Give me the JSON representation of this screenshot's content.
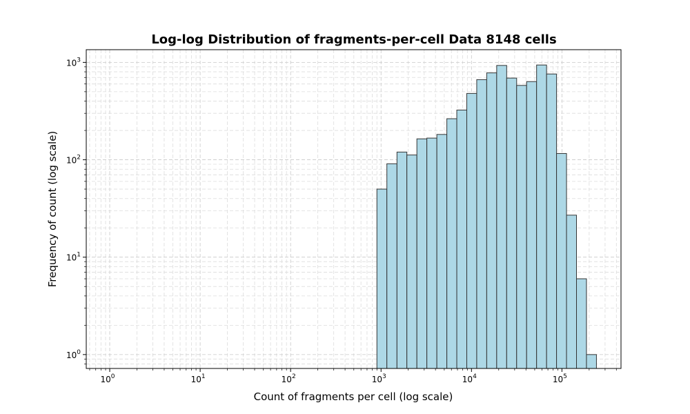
{
  "chart_data": {
    "type": "bar",
    "title": "Log-log Distribution of fragments-per-cell Data 8148 cells",
    "xlabel": "Count of fragments per cell (log scale)",
    "ylabel": "Frequency of count (log scale)",
    "x_scale": "log",
    "y_scale": "log",
    "xlim": [
      0.55,
      450000
    ],
    "ylim": [
      0.72,
      1350
    ],
    "grid": true,
    "bar_color": "#add8e6",
    "edge_color": "#333333",
    "x_ticks": [
      {
        "base": "10",
        "exp": "0",
        "value": 1
      },
      {
        "base": "10",
        "exp": "1",
        "value": 10
      },
      {
        "base": "10",
        "exp": "2",
        "value": 100
      },
      {
        "base": "10",
        "exp": "3",
        "value": 1000
      },
      {
        "base": "10",
        "exp": "4",
        "value": 10000
      },
      {
        "base": "10",
        "exp": "5",
        "value": 100000
      }
    ],
    "y_ticks": [
      {
        "base": "10",
        "exp": "0",
        "value": 1
      },
      {
        "base": "10",
        "exp": "1",
        "value": 10
      },
      {
        "base": "10",
        "exp": "2",
        "value": 100
      },
      {
        "base": "10",
        "exp": "3",
        "value": 1000
      }
    ],
    "bin_edges": [
      900,
      1160,
      1500,
      1930,
      2490,
      3210,
      4140,
      5340,
      6880,
      8870,
      11430,
      14740,
      19000,
      24500,
      31580,
      40710,
      52480,
      67650,
      87210,
      112420,
      144930,
      186830,
      240860
    ],
    "values": [
      50,
      91,
      120,
      112,
      164,
      167,
      182,
      264,
      324,
      480,
      665,
      780,
      930,
      690,
      580,
      635,
      940,
      760,
      116,
      27,
      6,
      1
    ]
  }
}
